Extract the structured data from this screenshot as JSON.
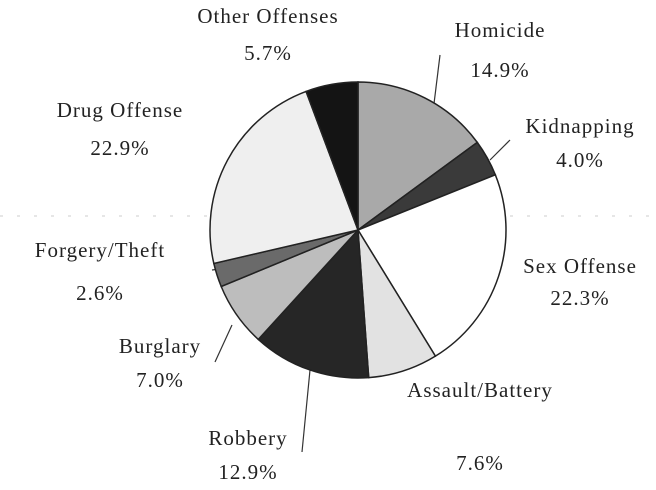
{
  "chart_data": {
    "type": "pie",
    "categories": [
      "Homicide",
      "Kidnapping",
      "Sex Offense",
      "Assault/Battery",
      "Robbery",
      "Burglary",
      "Forgery/Theft",
      "Drug Offense",
      "Other Offenses"
    ],
    "values": [
      14.9,
      4.0,
      22.3,
      7.6,
      12.9,
      7.0,
      2.6,
      22.9,
      5.7
    ],
    "value_labels": [
      "14.9%",
      "4.0%",
      "22.3%",
      "7.6%",
      "12.9%",
      "7.0%",
      "2.6%",
      "22.9%",
      "5.7%"
    ],
    "colors": [
      "#a9a9a9",
      "#3a3a3a",
      "#ffffff",
      "#e2e2e2",
      "#262626",
      "#bdbdbd",
      "#6a6a6a",
      "#efefef",
      "#141414"
    ]
  }
}
